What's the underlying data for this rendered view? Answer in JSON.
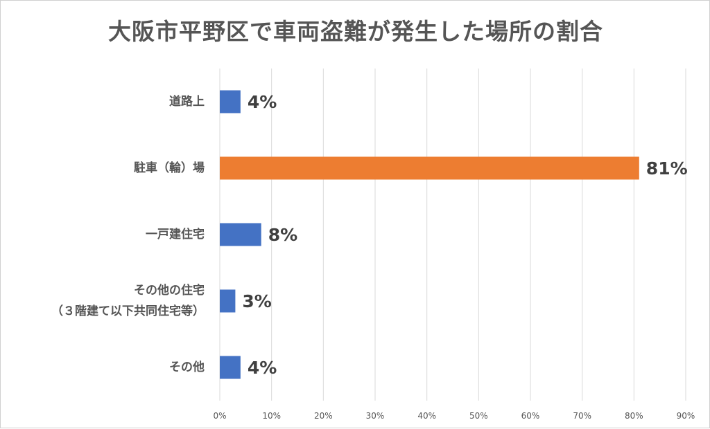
{
  "chart_data": {
    "type": "bar",
    "orientation": "horizontal",
    "title": "大阪市平野区で車両盗難が発生した場所の割合",
    "categories": [
      [
        "道路上"
      ],
      [
        "駐車（輪）場"
      ],
      [
        "一戸建住宅"
      ],
      [
        "その他の住宅",
        "（３階建て以下共同住宅等）"
      ],
      [
        "その他"
      ]
    ],
    "values": [
      4,
      81,
      8,
      3,
      4
    ],
    "data_labels": [
      "4%",
      "81%",
      "8%",
      "3%",
      "4%"
    ],
    "bar_colors": [
      "#4472C4",
      "#ED7D31",
      "#4472C4",
      "#4472C4",
      "#4472C4"
    ],
    "xlim": [
      0,
      90
    ],
    "x_ticks": [
      "0%",
      "10%",
      "20%",
      "30%",
      "40%",
      "50%",
      "60%",
      "70%",
      "80%",
      "90%"
    ],
    "grid": "vertical",
    "gridline_color": "#d9d9d9"
  }
}
